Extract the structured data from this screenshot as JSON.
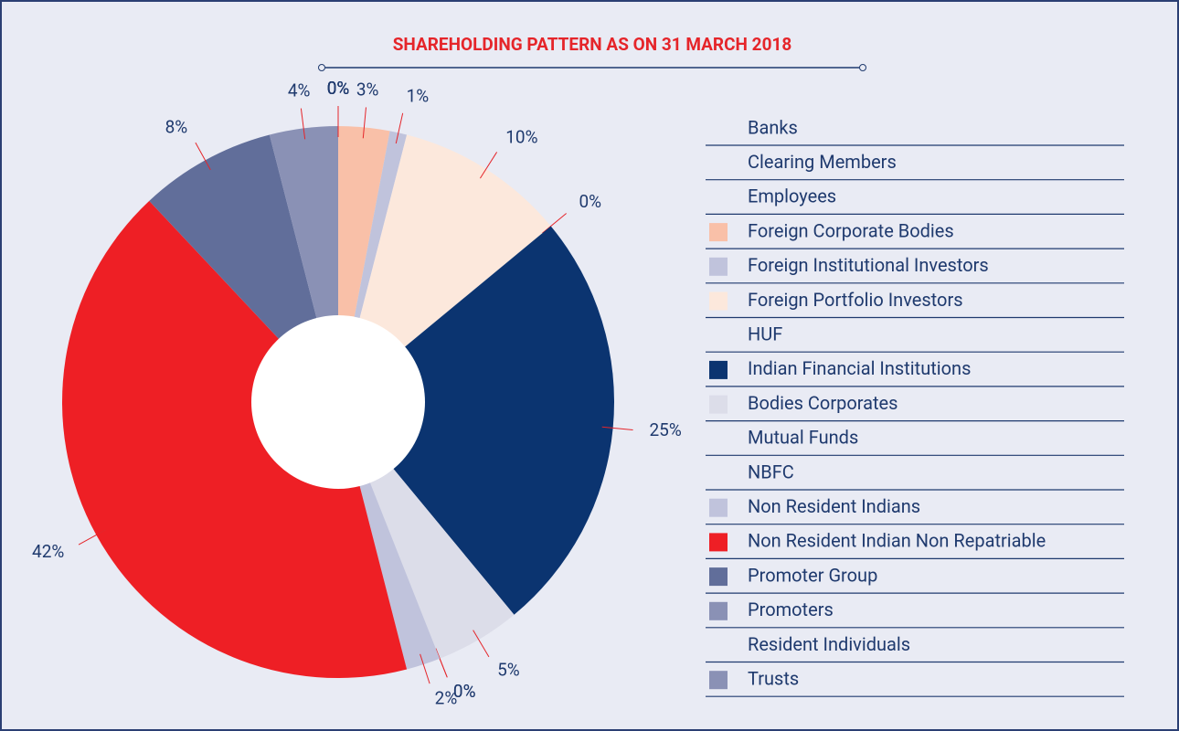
{
  "chart_data": {
    "type": "pie",
    "title": "SHAREHOLDING PATTERN AS ON 31 MARCH 2018",
    "categories": [
      "Banks",
      "Clearing Members",
      "Employees",
      "Foreign Corporate Bodies",
      "Foreign Institutional Investors",
      "Foreign Portfolio Investors",
      "HUF",
      "Indian Financial Institutions",
      "Bodies Corporates",
      "Mutual Funds",
      "NBFC",
      "Non Resident Indians",
      "Non Resident Indian Non Repatriable",
      "Promoter Group",
      "Promoters",
      "Resident Individuals",
      "Trusts"
    ],
    "values": [
      0,
      0,
      0,
      3,
      1,
      10,
      0,
      25,
      5,
      0,
      0,
      2,
      42,
      8,
      4,
      0,
      0
    ],
    "value_labels": [
      "0%",
      "0%",
      "0%",
      "3%",
      "1%",
      "10%",
      "0%",
      "25%",
      "5%",
      "0%",
      "0%",
      "2%",
      "42%",
      "8%",
      "4%",
      "0%",
      "0%"
    ],
    "colors": [
      null,
      null,
      null,
      "#f9c0a8",
      "#c0c3dc",
      "#fce8dc",
      null,
      "#0b3470",
      "#dcdde9",
      null,
      null,
      "#c0c3dc",
      "#ee1f25",
      "#616e9a",
      "#8a91b5",
      null,
      "#8a91b5"
    ],
    "slice_colors": [
      "#f0f0f0",
      "#f0f0f0",
      "#f0f0f0",
      "#f9c0a8",
      "#c0c3dc",
      "#fce8dc",
      "#f0f0f0",
      "#0b3470",
      "#dcdde9",
      "#f0f0f0",
      "#f0f0f0",
      "#c0c3dc",
      "#ee1f25",
      "#616e9a",
      "#8a91b5",
      "#f0f0f0",
      "#8a91b5"
    ]
  }
}
